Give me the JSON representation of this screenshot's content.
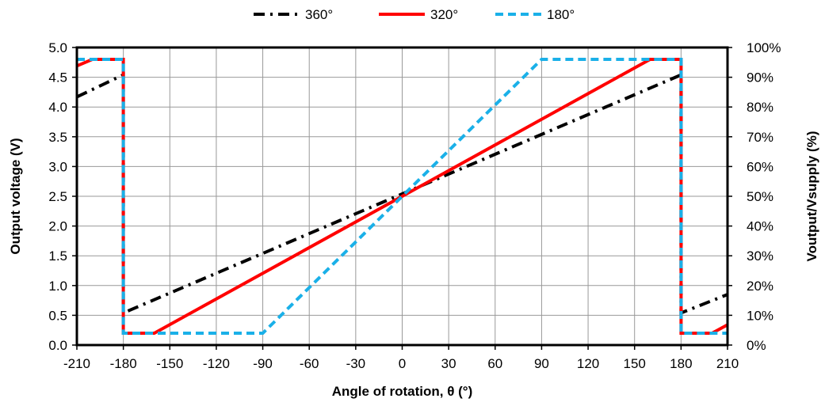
{
  "chart_data": {
    "type": "line",
    "xlabel": "Angle of rotation, θ (°)",
    "ylabel": "Output voltage (V)",
    "y2label": "Voutput/Vsupply (%)",
    "xlim": [
      -210,
      210
    ],
    "ylim": [
      0,
      5
    ],
    "y2lim": [
      0,
      100
    ],
    "grid": true,
    "legend_position": "top",
    "x_ticks": [
      "-210",
      "-180",
      "-150",
      "-120",
      "-90",
      "-60",
      "-30",
      "0",
      "30",
      "60",
      "90",
      "120",
      "150",
      "180",
      "210"
    ],
    "y_ticks": [
      "0.0",
      "0.5",
      "1.0",
      "1.5",
      "2.0",
      "2.5",
      "3.0",
      "3.5",
      "4.0",
      "4.5",
      "5.0"
    ],
    "y2_ticks": [
      "0%",
      "10%",
      "20%",
      "30%",
      "40%",
      "50%",
      "60%",
      "70%",
      "80%",
      "90%",
      "100%"
    ],
    "series": [
      {
        "name": "360°",
        "color": "#000000",
        "dash": "dash-dot",
        "points": [
          [
            -210,
            4.17
          ],
          [
            -180,
            4.54
          ],
          [
            -180,
            0.54
          ],
          [
            180,
            4.54
          ],
          [
            180,
            0.54
          ],
          [
            210,
            0.85
          ]
        ]
      },
      {
        "name": "320°",
        "color": "#ff0000",
        "dash": "solid",
        "points": [
          [
            -210,
            4.69
          ],
          [
            -200,
            4.8
          ],
          [
            -180,
            4.8
          ],
          [
            -180,
            0.2
          ],
          [
            -160,
            0.2
          ],
          [
            160,
            4.8
          ],
          [
            180,
            4.8
          ],
          [
            180,
            0.2
          ],
          [
            200,
            0.2
          ],
          [
            210,
            0.34
          ]
        ]
      },
      {
        "name": "180°",
        "color": "#1ab0e8",
        "dash": "dashed",
        "points": [
          [
            -210,
            4.8
          ],
          [
            -180,
            4.8
          ],
          [
            -180,
            0.2
          ],
          [
            -90,
            0.2
          ],
          [
            90,
            4.8
          ],
          [
            180,
            4.8
          ],
          [
            180,
            0.2
          ],
          [
            210,
            0.2
          ]
        ]
      }
    ]
  }
}
